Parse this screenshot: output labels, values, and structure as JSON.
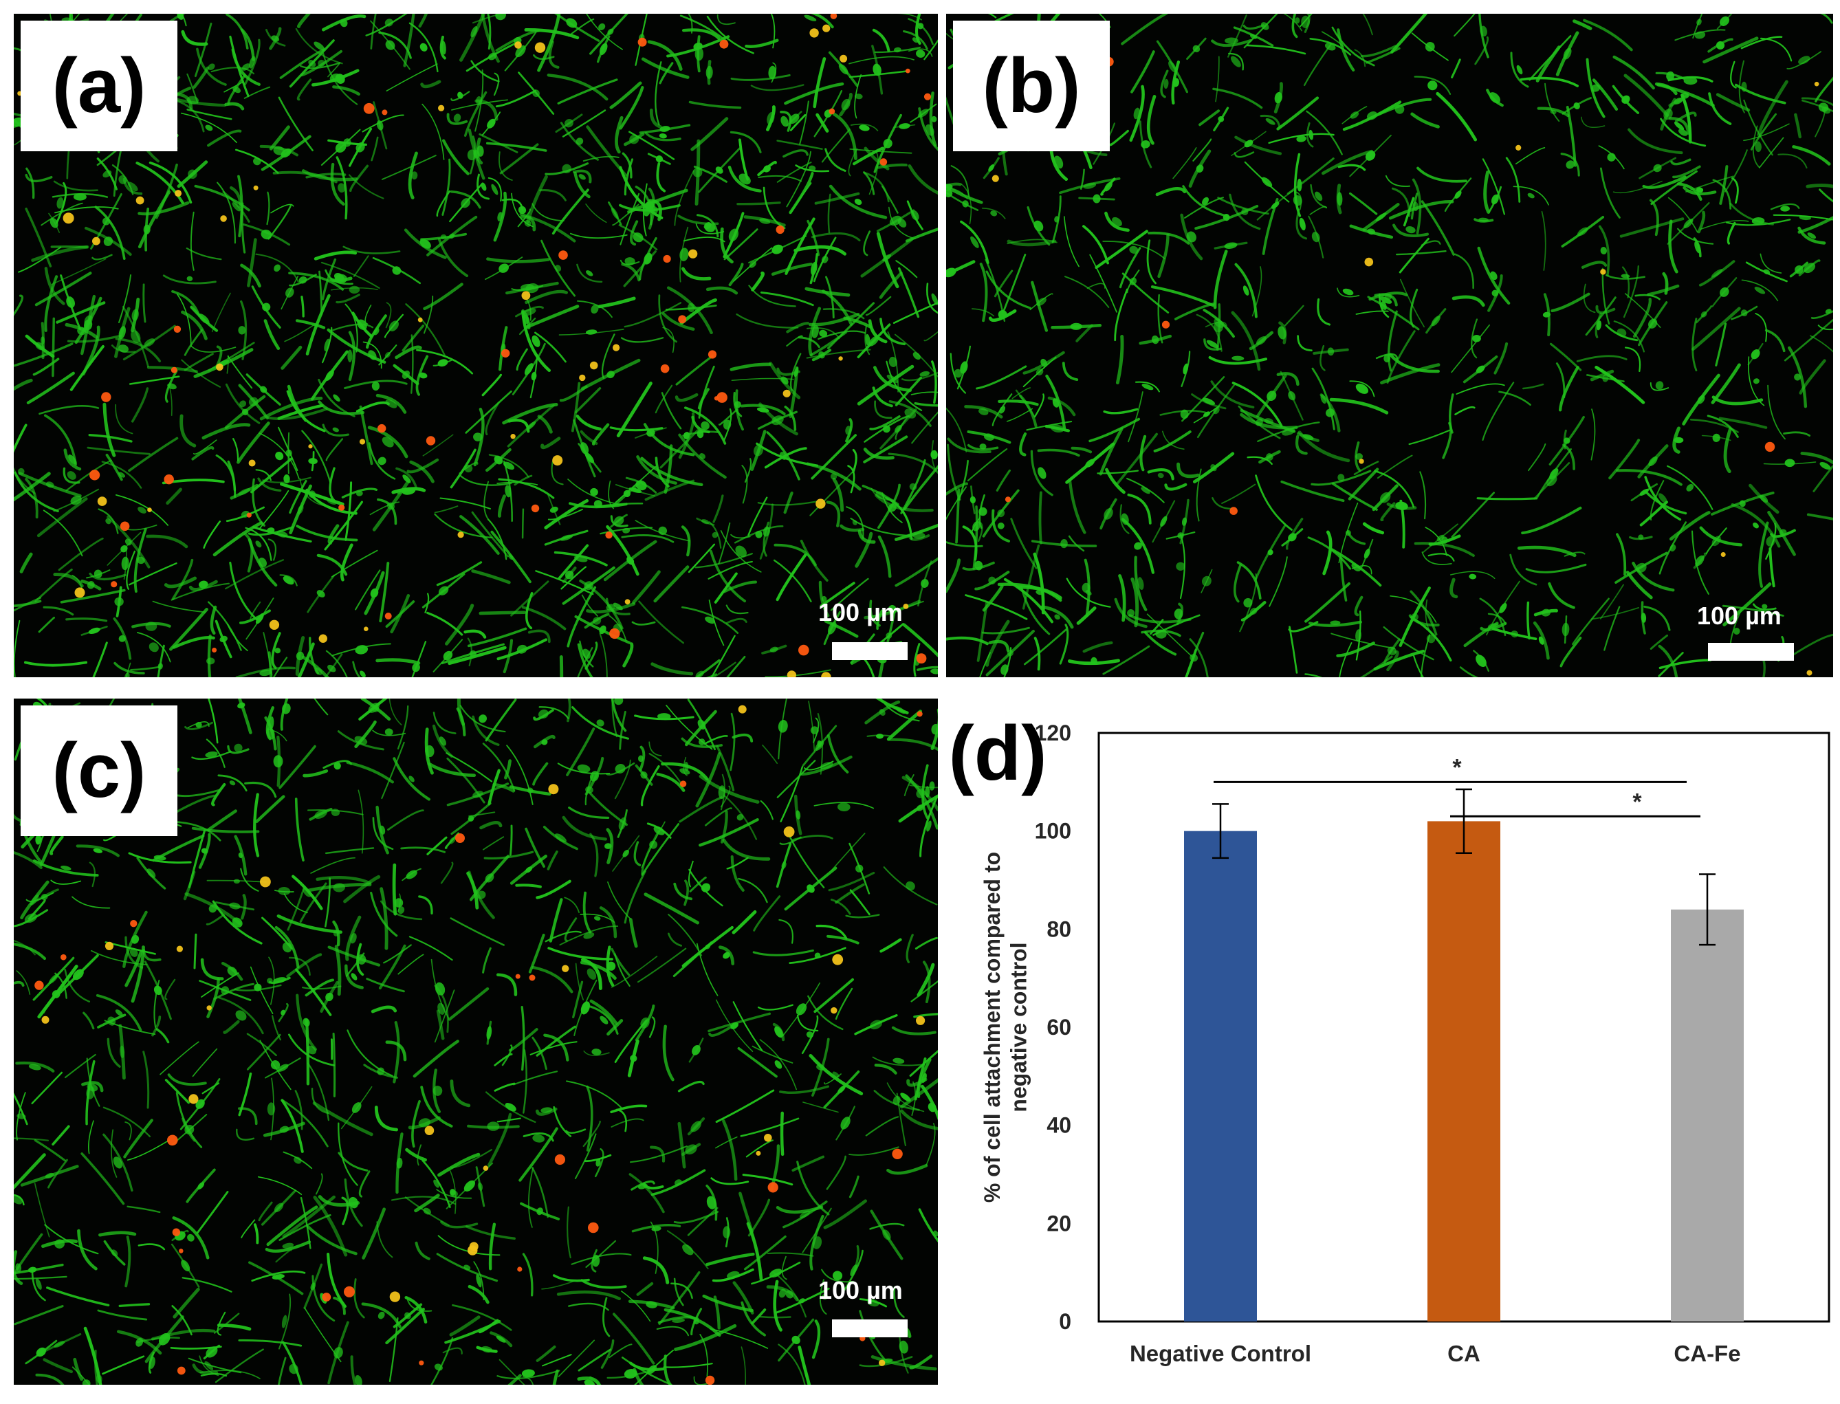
{
  "panels": [
    {
      "label": "(a)",
      "scale": "100 µm",
      "density": 1.0,
      "dead_ratio": 0.09
    },
    {
      "label": "(b)",
      "scale": "100 µm",
      "density": 0.75,
      "dead_ratio": 0.02
    },
    {
      "label": "(c)",
      "scale": "100 µm",
      "density": 0.8,
      "dead_ratio": 0.06
    }
  ],
  "colors": {
    "live": "#22c21c",
    "dead": "#ff5a10",
    "background": "#020402",
    "bar_negative_control": "#2e5597",
    "bar_ca": "#c55a11",
    "bar_ca_fe": "#a9a9a9"
  },
  "chart_label": "(d)",
  "chart_data": {
    "type": "bar",
    "categories": [
      "Negative Control",
      "CA",
      "CA-Fe"
    ],
    "values": [
      100,
      102,
      84
    ],
    "errors": [
      5.5,
      6.5,
      7.2
    ],
    "ylabel": "% of cell attachment compared to negative control",
    "ylabel_lines": [
      "% of cell attachment compared to",
      "negative control"
    ],
    "xlabel": "",
    "ylim": [
      0,
      120
    ],
    "yticks": [
      0,
      20,
      40,
      60,
      80,
      100,
      120
    ],
    "significance": [
      {
        "from": "Negative Control",
        "to": "CA-Fe",
        "mark": "*"
      },
      {
        "from": "CA",
        "to": "CA-Fe",
        "mark": "*"
      }
    ],
    "grid": false
  }
}
